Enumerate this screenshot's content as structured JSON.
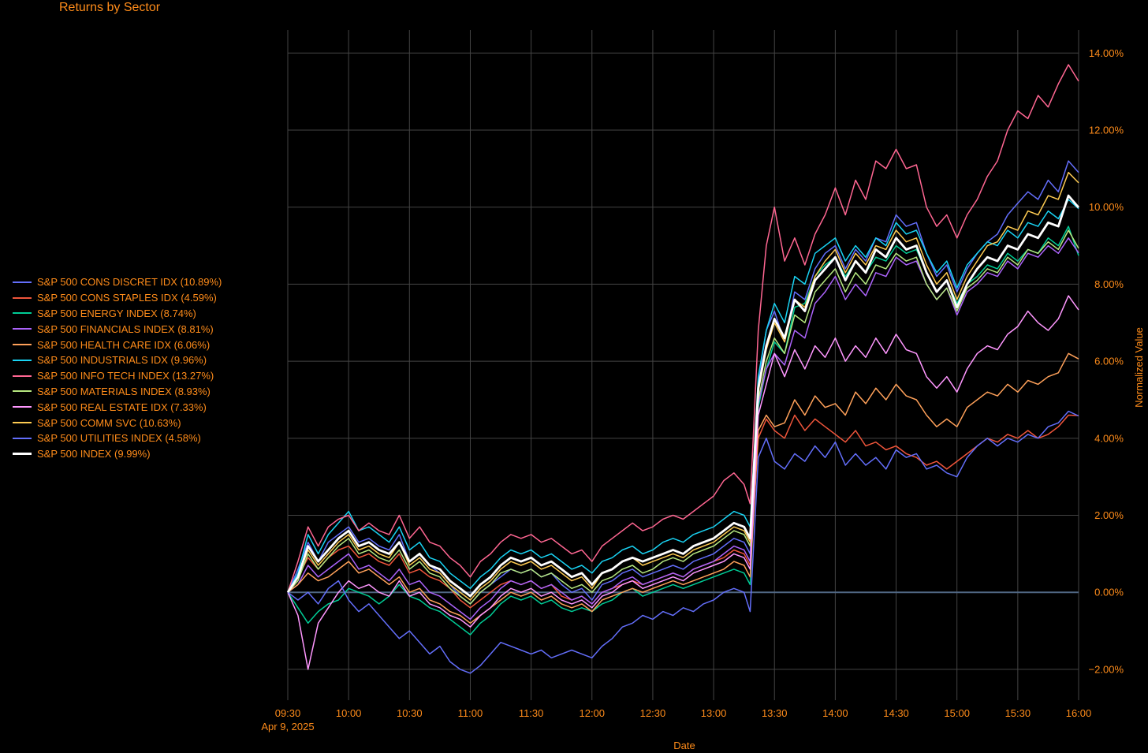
{
  "title": "Returns by Sector",
  "chart_data": {
    "type": "line",
    "title": "Returns by Sector",
    "xlabel": "Date",
    "ylabel": "Normalized Value",
    "x_ticks": [
      {
        "t": 0,
        "label": "09:30",
        "sub": "Apr 9, 2025"
      },
      {
        "t": 30,
        "label": "10:00"
      },
      {
        "t": 60,
        "label": "10:30"
      },
      {
        "t": 90,
        "label": "11:00"
      },
      {
        "t": 120,
        "label": "11:30"
      },
      {
        "t": 150,
        "label": "12:00"
      },
      {
        "t": 180,
        "label": "12:30"
      },
      {
        "t": 210,
        "label": "13:00"
      },
      {
        "t": 240,
        "label": "13:30"
      },
      {
        "t": 270,
        "label": "14:00"
      },
      {
        "t": 300,
        "label": "14:30"
      },
      {
        "t": 330,
        "label": "15:00"
      },
      {
        "t": 360,
        "label": "15:30"
      },
      {
        "t": 390,
        "label": "16:00"
      }
    ],
    "y_ticks": [
      {
        "v": -2,
        "label": "−2.00%"
      },
      {
        "v": 0,
        "label": "0.00%"
      },
      {
        "v": 2,
        "label": "2.00%"
      },
      {
        "v": 4,
        "label": "4.00%"
      },
      {
        "v": 6,
        "label": "6.00%"
      },
      {
        "v": 8,
        "label": "8.00%"
      },
      {
        "v": 10,
        "label": "10.00%"
      },
      {
        "v": 12,
        "label": "12.00%"
      },
      {
        "v": 14,
        "label": "14.00%"
      }
    ],
    "xlim": [
      0,
      390
    ],
    "ylim": [
      -2.8,
      14.6
    ],
    "y_axis_side": "right",
    "grid": true,
    "legend_position": "left",
    "x_points": [
      0,
      5,
      10,
      15,
      20,
      25,
      30,
      35,
      40,
      45,
      50,
      55,
      60,
      65,
      70,
      75,
      80,
      85,
      90,
      95,
      100,
      105,
      110,
      115,
      120,
      125,
      130,
      135,
      140,
      145,
      150,
      155,
      160,
      165,
      170,
      175,
      180,
      185,
      190,
      195,
      200,
      205,
      210,
      215,
      220,
      225,
      228,
      232,
      236,
      240,
      245,
      250,
      255,
      260,
      265,
      270,
      275,
      280,
      285,
      290,
      295,
      300,
      305,
      310,
      315,
      320,
      325,
      330,
      335,
      340,
      345,
      350,
      355,
      360,
      365,
      370,
      375,
      380,
      385,
      390
    ],
    "series": [
      {
        "name": "S&P 500 CONS DISCRET IDX (10.89%)",
        "color": "#636efa",
        "width": 1.5,
        "values": [
          0,
          0.6,
          1.3,
          0.8,
          1.3,
          1.5,
          1.7,
          1.3,
          1.4,
          1.2,
          1.1,
          1.5,
          0.8,
          1.0,
          0.7,
          0.5,
          0.2,
          -0.1,
          -0.3,
          0.0,
          0.2,
          0.4,
          0.6,
          0.5,
          0.6,
          0.4,
          0.5,
          0.2,
          0.0,
          0.1,
          -0.2,
          0.2,
          0.3,
          0.5,
          0.6,
          0.4,
          0.5,
          0.6,
          0.7,
          0.6,
          0.8,
          0.9,
          1.0,
          1.2,
          1.4,
          1.3,
          1.0,
          5.5,
          6.8,
          7.3,
          6.5,
          7.8,
          7.6,
          8.4,
          8.8,
          9.0,
          8.4,
          8.9,
          8.6,
          9.2,
          9.1,
          9.8,
          9.5,
          9.6,
          8.8,
          8.2,
          8.5,
          7.8,
          8.4,
          8.8,
          9.1,
          9.3,
          9.8,
          10.1,
          10.4,
          10.2,
          10.7,
          10.4,
          11.2,
          10.9
        ]
      },
      {
        "name": "S&P 500 CONS STAPLES IDX (4.59%)",
        "color": "#ef553b",
        "width": 1.5,
        "values": [
          0,
          0.4,
          0.9,
          0.6,
          0.9,
          1.1,
          1.2,
          0.9,
          1.0,
          0.8,
          0.7,
          1.0,
          0.5,
          0.6,
          0.4,
          0.3,
          0.1,
          -0.2,
          -0.4,
          -0.2,
          0.0,
          0.2,
          0.3,
          0.2,
          0.3,
          0.1,
          0.2,
          -0.1,
          -0.2,
          -0.1,
          -0.3,
          0.0,
          0.1,
          0.2,
          0.3,
          0.2,
          0.3,
          0.4,
          0.5,
          0.4,
          0.6,
          0.7,
          0.8,
          0.9,
          1.1,
          1.0,
          0.7,
          4.0,
          4.5,
          4.2,
          4.0,
          4.6,
          4.2,
          4.5,
          4.3,
          4.1,
          3.9,
          4.2,
          3.8,
          3.9,
          3.7,
          3.8,
          3.6,
          3.5,
          3.3,
          3.4,
          3.2,
          3.4,
          3.6,
          3.8,
          4.0,
          3.9,
          4.1,
          4.0,
          4.2,
          4.0,
          4.1,
          4.3,
          4.6,
          4.59
        ]
      },
      {
        "name": "S&P 500 ENERGY INDEX (8.74%)",
        "color": "#00cc96",
        "width": 1.5,
        "values": [
          0,
          -0.4,
          -0.8,
          -0.5,
          -0.3,
          -0.2,
          0.1,
          0.0,
          -0.1,
          -0.3,
          -0.1,
          0.2,
          -0.1,
          -0.2,
          -0.4,
          -0.5,
          -0.7,
          -0.9,
          -1.1,
          -0.8,
          -0.6,
          -0.3,
          -0.1,
          -0.2,
          -0.1,
          -0.3,
          -0.2,
          -0.4,
          -0.5,
          -0.4,
          -0.5,
          -0.3,
          -0.2,
          0.0,
          0.1,
          -0.1,
          0.0,
          0.1,
          0.2,
          0.1,
          0.2,
          0.3,
          0.4,
          0.5,
          0.6,
          0.5,
          0.2,
          4.8,
          5.8,
          6.5,
          6.2,
          7.4,
          7.5,
          8.2,
          8.5,
          8.7,
          8.2,
          8.6,
          8.3,
          8.7,
          8.6,
          9.0,
          8.8,
          8.9,
          8.3,
          7.8,
          8.1,
          7.5,
          8.0,
          8.2,
          8.5,
          8.4,
          8.8,
          8.6,
          8.9,
          8.8,
          9.2,
          9.0,
          9.5,
          8.74
        ]
      },
      {
        "name": "S&P 500 FINANCIALS INDEX (8.81%)",
        "color": "#ab63fa",
        "width": 1.5,
        "values": [
          0,
          0.2,
          0.7,
          0.4,
          0.6,
          0.8,
          1.0,
          0.6,
          0.7,
          0.5,
          0.3,
          0.6,
          0.2,
          0.3,
          0.0,
          -0.1,
          -0.3,
          -0.5,
          -0.7,
          -0.4,
          -0.2,
          0.1,
          0.3,
          0.2,
          0.3,
          0.1,
          0.2,
          0.0,
          -0.2,
          -0.1,
          -0.3,
          0.0,
          0.1,
          0.3,
          0.4,
          0.2,
          0.3,
          0.4,
          0.5,
          0.4,
          0.6,
          0.7,
          0.8,
          1.0,
          1.2,
          1.1,
          0.8,
          4.9,
          5.8,
          6.2,
          5.9,
          6.8,
          6.6,
          7.5,
          7.8,
          8.2,
          7.6,
          8.0,
          7.7,
          8.3,
          8.2,
          8.7,
          8.5,
          8.6,
          8.0,
          7.6,
          7.9,
          7.2,
          7.8,
          8.0,
          8.3,
          8.2,
          8.6,
          8.4,
          8.8,
          8.7,
          9.0,
          8.8,
          9.2,
          8.81
        ]
      },
      {
        "name": "S&P 500 HEALTH CARE IDX (6.06%)",
        "color": "#ffa15a",
        "width": 1.5,
        "values": [
          0,
          0.2,
          0.5,
          0.3,
          0.4,
          0.6,
          0.8,
          0.5,
          0.6,
          0.4,
          0.2,
          0.4,
          0.0,
          0.1,
          -0.2,
          -0.3,
          -0.5,
          -0.6,
          -0.8,
          -0.6,
          -0.4,
          -0.2,
          0.0,
          -0.1,
          0.0,
          -0.2,
          -0.1,
          -0.3,
          -0.4,
          -0.3,
          -0.5,
          -0.2,
          -0.1,
          0.0,
          0.1,
          0.0,
          0.1,
          0.2,
          0.3,
          0.2,
          0.3,
          0.4,
          0.5,
          0.6,
          0.8,
          0.7,
          0.4,
          4.2,
          4.6,
          4.3,
          4.4,
          5.0,
          4.6,
          5.1,
          4.8,
          4.9,
          4.6,
          5.2,
          4.9,
          5.3,
          5.0,
          5.4,
          5.1,
          5.0,
          4.6,
          4.3,
          4.5,
          4.3,
          4.8,
          5.0,
          5.2,
          5.1,
          5.4,
          5.2,
          5.5,
          5.4,
          5.6,
          5.7,
          6.2,
          6.06
        ]
      },
      {
        "name": "S&P 500 INDUSTRIALS IDX (9.96%)",
        "color": "#19d3f3",
        "width": 1.5,
        "values": [
          0,
          0.5,
          1.5,
          1.0,
          1.5,
          1.8,
          2.1,
          1.6,
          1.7,
          1.5,
          1.3,
          1.7,
          1.1,
          1.3,
          0.9,
          0.8,
          0.5,
          0.3,
          0.1,
          0.4,
          0.6,
          0.9,
          1.1,
          1.0,
          1.1,
          0.9,
          1.0,
          0.8,
          0.6,
          0.7,
          0.5,
          0.8,
          0.9,
          1.1,
          1.2,
          1.0,
          1.1,
          1.3,
          1.4,
          1.3,
          1.5,
          1.6,
          1.7,
          1.9,
          2.1,
          2.0,
          1.7,
          5.6,
          6.8,
          7.5,
          7.0,
          8.2,
          8.0,
          8.8,
          9.0,
          9.2,
          8.6,
          9.0,
          8.7,
          9.2,
          9.0,
          9.6,
          9.3,
          9.4,
          8.8,
          8.3,
          8.6,
          7.9,
          8.5,
          8.8,
          9.1,
          9.0,
          9.4,
          9.2,
          9.6,
          9.5,
          9.9,
          9.7,
          10.2,
          9.96
        ]
      },
      {
        "name": "S&P 500 INFO TECH INDEX (13.27%)",
        "color": "#ff6692",
        "width": 1.5,
        "values": [
          0,
          0.8,
          1.7,
          1.2,
          1.7,
          1.9,
          2.0,
          1.6,
          1.8,
          1.6,
          1.5,
          2.0,
          1.4,
          1.7,
          1.3,
          1.2,
          0.9,
          0.7,
          0.4,
          0.8,
          1.0,
          1.3,
          1.5,
          1.4,
          1.5,
          1.3,
          1.4,
          1.2,
          1.0,
          1.1,
          0.8,
          1.2,
          1.4,
          1.6,
          1.8,
          1.6,
          1.7,
          1.9,
          2.0,
          1.9,
          2.1,
          2.3,
          2.5,
          2.9,
          3.1,
          2.8,
          2.3,
          6.8,
          9.0,
          10.0,
          8.6,
          9.2,
          8.5,
          9.3,
          9.8,
          10.5,
          9.8,
          10.7,
          10.2,
          11.2,
          11.0,
          11.5,
          11.0,
          11.1,
          10.0,
          9.5,
          9.8,
          9.2,
          9.8,
          10.2,
          10.8,
          11.2,
          12.0,
          12.5,
          12.3,
          12.9,
          12.6,
          13.2,
          13.7,
          13.27
        ]
      },
      {
        "name": "S&P 500 MATERIALS INDEX (8.93%)",
        "color": "#b6e880",
        "width": 1.5,
        "values": [
          0,
          0.3,
          1.0,
          0.6,
          0.9,
          1.2,
          1.4,
          1.0,
          1.1,
          0.9,
          0.8,
          1.1,
          0.6,
          0.8,
          0.5,
          0.4,
          0.1,
          -0.1,
          -0.3,
          0.0,
          0.2,
          0.5,
          0.6,
          0.5,
          0.6,
          0.4,
          0.5,
          0.3,
          0.1,
          0.2,
          0.0,
          0.3,
          0.4,
          0.6,
          0.7,
          0.5,
          0.6,
          0.8,
          0.9,
          0.8,
          1.0,
          1.1,
          1.2,
          1.4,
          1.6,
          1.5,
          1.2,
          5.0,
          6.0,
          6.6,
          6.2,
          7.2,
          7.0,
          7.8,
          8.1,
          8.4,
          7.8,
          8.3,
          8.0,
          8.5,
          8.4,
          8.8,
          8.6,
          8.7,
          8.0,
          7.6,
          7.9,
          7.3,
          7.9,
          8.1,
          8.4,
          8.3,
          8.7,
          8.5,
          8.9,
          8.8,
          9.1,
          8.9,
          9.4,
          8.93
        ]
      },
      {
        "name": "S&P 500 REAL ESTATE IDX (7.33%)",
        "color": "#ff97ff",
        "width": 1.5,
        "values": [
          0,
          -0.6,
          -2.0,
          -0.8,
          -0.4,
          0.0,
          0.3,
          0.1,
          0.2,
          0.0,
          -0.1,
          0.3,
          -0.1,
          0.0,
          -0.3,
          -0.4,
          -0.6,
          -0.7,
          -0.9,
          -0.6,
          -0.4,
          -0.1,
          0.1,
          0.0,
          0.1,
          -0.1,
          0.0,
          -0.2,
          -0.3,
          -0.2,
          -0.4,
          -0.1,
          0.0,
          0.2,
          0.3,
          0.1,
          0.2,
          0.3,
          0.4,
          0.3,
          0.5,
          0.6,
          0.7,
          0.8,
          1.0,
          0.9,
          0.6,
          4.6,
          5.4,
          6.2,
          5.6,
          6.3,
          5.8,
          6.4,
          6.1,
          6.6,
          6.0,
          6.4,
          6.1,
          6.6,
          6.2,
          6.7,
          6.3,
          6.2,
          5.6,
          5.3,
          5.6,
          5.2,
          5.8,
          6.2,
          6.4,
          6.3,
          6.7,
          6.9,
          7.3,
          7.0,
          6.8,
          7.1,
          7.7,
          7.33
        ]
      },
      {
        "name": "S&P 500 COMM SVC (10.63%)",
        "color": "#fecb52",
        "width": 1.5,
        "values": [
          0,
          0.4,
          1.1,
          0.7,
          1.0,
          1.3,
          1.5,
          1.1,
          1.2,
          1.0,
          0.9,
          1.3,
          0.7,
          0.9,
          0.6,
          0.5,
          0.2,
          0.0,
          -0.2,
          0.1,
          0.3,
          0.6,
          0.8,
          0.7,
          0.8,
          0.6,
          0.7,
          0.5,
          0.3,
          0.4,
          0.1,
          0.5,
          0.6,
          0.8,
          0.9,
          0.7,
          0.8,
          0.9,
          1.0,
          0.9,
          1.1,
          1.2,
          1.3,
          1.5,
          1.7,
          1.6,
          1.3,
          5.2,
          6.3,
          7.0,
          6.5,
          7.6,
          7.4,
          8.2,
          8.6,
          8.9,
          8.3,
          8.8,
          8.5,
          9.0,
          8.9,
          9.4,
          9.1,
          9.2,
          8.5,
          8.0,
          8.3,
          7.6,
          8.2,
          8.6,
          9.0,
          9.1,
          9.5,
          9.4,
          9.9,
          9.8,
          10.3,
          10.2,
          10.9,
          10.63
        ]
      },
      {
        "name": "S&P 500 UTILITIES INDEX (4.58%)",
        "color": "#636efa",
        "width": 1.5,
        "values": [
          0,
          -0.2,
          0.0,
          -0.3,
          0.1,
          0.3,
          -0.2,
          -0.5,
          -0.3,
          -0.6,
          -0.9,
          -1.2,
          -1.0,
          -1.3,
          -1.6,
          -1.4,
          -1.8,
          -2.0,
          -2.1,
          -1.9,
          -1.6,
          -1.3,
          -1.4,
          -1.5,
          -1.6,
          -1.5,
          -1.7,
          -1.6,
          -1.5,
          -1.6,
          -1.7,
          -1.4,
          -1.2,
          -0.9,
          -0.8,
          -0.6,
          -0.7,
          -0.5,
          -0.6,
          -0.4,
          -0.5,
          -0.3,
          -0.2,
          0.0,
          0.1,
          0.0,
          -0.5,
          3.5,
          4.0,
          3.4,
          3.2,
          3.6,
          3.4,
          3.8,
          3.5,
          3.9,
          3.3,
          3.6,
          3.3,
          3.5,
          3.2,
          3.7,
          3.5,
          3.6,
          3.2,
          3.3,
          3.1,
          3.0,
          3.5,
          3.8,
          4.0,
          3.8,
          4.0,
          3.9,
          4.1,
          4.0,
          4.3,
          4.4,
          4.7,
          4.58
        ]
      },
      {
        "name": "S&P 500 INDEX (9.99%)",
        "color": "#ffffff",
        "width": 2.8,
        "values": [
          0,
          0.4,
          1.2,
          0.8,
          1.1,
          1.4,
          1.6,
          1.2,
          1.3,
          1.1,
          1.0,
          1.3,
          0.8,
          1.0,
          0.7,
          0.6,
          0.3,
          0.1,
          -0.1,
          0.2,
          0.4,
          0.7,
          0.9,
          0.8,
          0.9,
          0.7,
          0.8,
          0.6,
          0.4,
          0.5,
          0.2,
          0.5,
          0.6,
          0.8,
          0.9,
          0.8,
          0.9,
          1.0,
          1.1,
          1.0,
          1.2,
          1.3,
          1.4,
          1.6,
          1.8,
          1.7,
          1.4,
          5.3,
          6.4,
          7.1,
          6.6,
          7.6,
          7.3,
          8.1,
          8.4,
          8.7,
          8.1,
          8.6,
          8.3,
          8.9,
          8.7,
          9.2,
          8.9,
          9.0,
          8.3,
          7.8,
          8.1,
          7.4,
          8.0,
          8.4,
          8.7,
          8.6,
          9.0,
          8.9,
          9.3,
          9.2,
          9.6,
          9.5,
          10.3,
          9.99
        ]
      }
    ]
  }
}
